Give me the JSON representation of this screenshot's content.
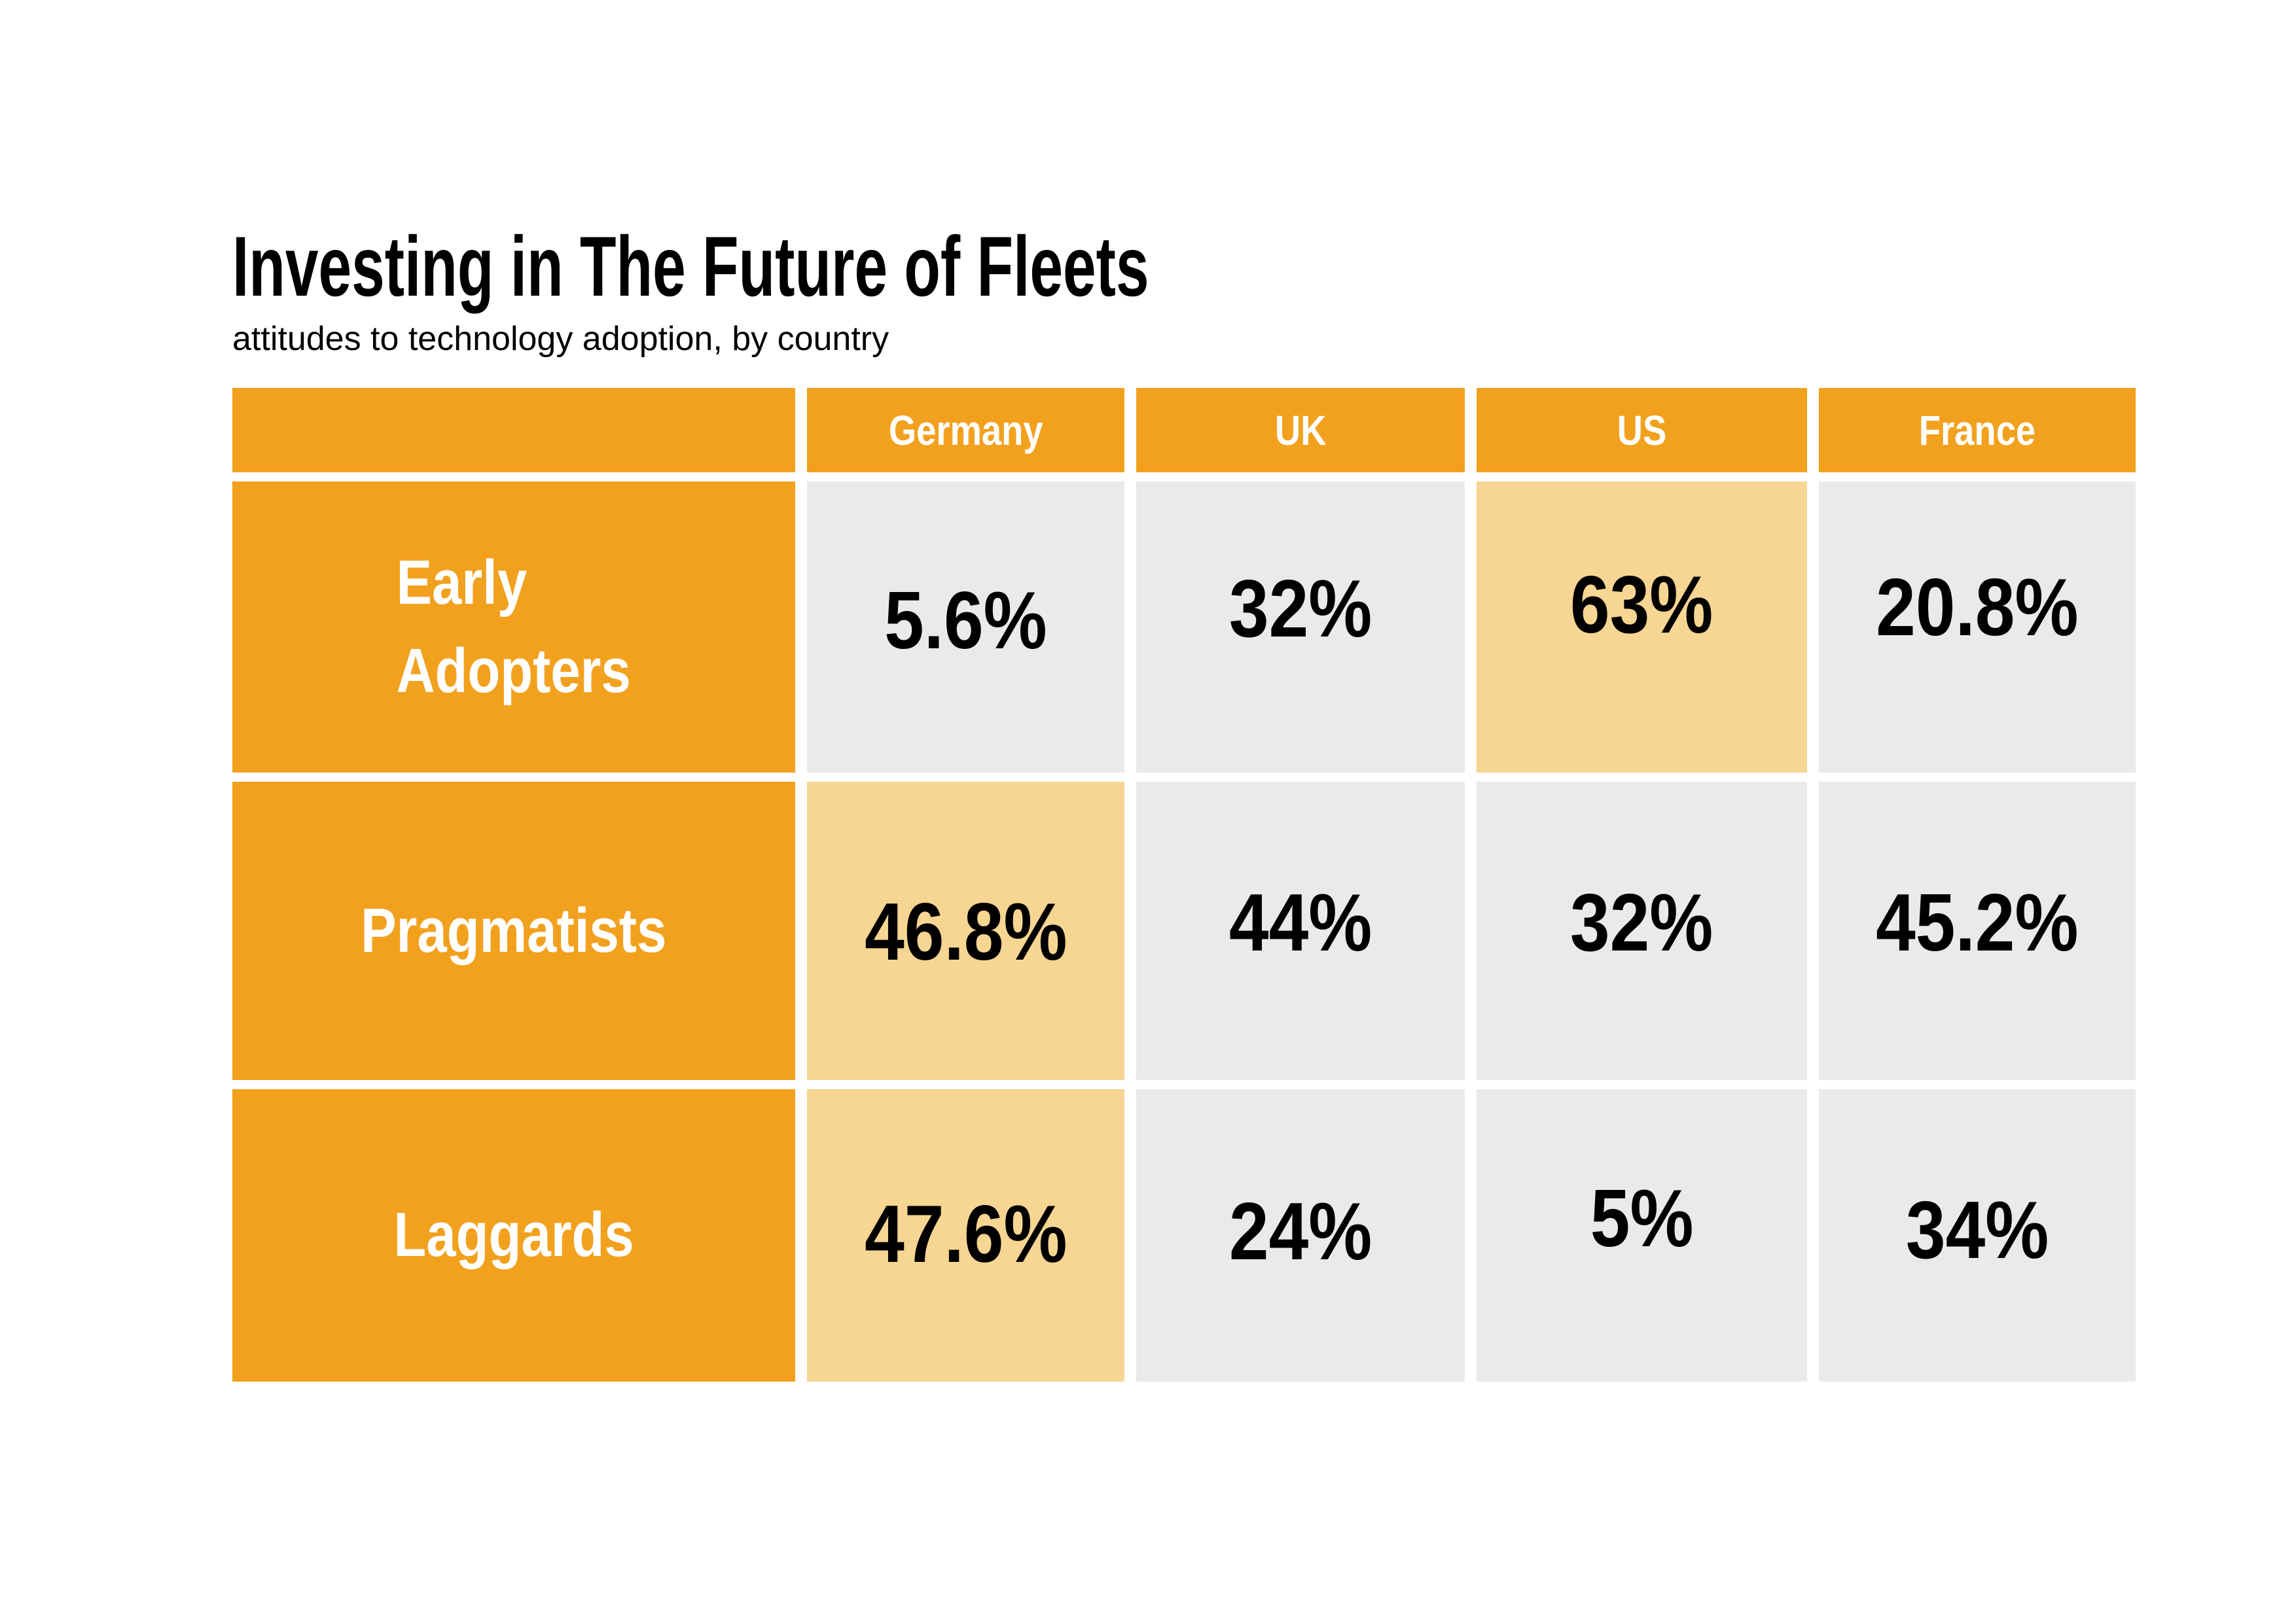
{
  "title": "Investing in The Future of Fleets",
  "subtitle": "attitudes to technology adoption, by country",
  "table": {
    "columns": [
      "Germany",
      "UK",
      "US",
      "France"
    ],
    "rows": [
      {
        "label": "Early\nAdopters",
        "values": [
          "5.6%",
          "32%",
          "63%",
          "20.8%"
        ]
      },
      {
        "label": "Pragmatists",
        "values": [
          "46.8%",
          "44%",
          "32%",
          "45.2%"
        ]
      },
      {
        "label": "Laggards",
        "values": [
          "47.6%",
          "24%",
          "5%",
          "34%"
        ]
      }
    ]
  },
  "colors": {
    "orange": "#F2A11E",
    "highlight": "#F7D592",
    "cell_gray": "#EBEAE8",
    "title_text": "#000000",
    "cell_text": "#000000",
    "header_text": "#FFFFFF"
  },
  "chart_data": {
    "type": "table",
    "title": "Investing in The Future of Fleets",
    "subtitle": "attitudes to technology adoption, by country",
    "categories": [
      "Germany",
      "UK",
      "US",
      "France"
    ],
    "series": [
      {
        "name": "Early Adopters",
        "values": [
          5.6,
          32,
          63,
          20.8
        ]
      },
      {
        "name": "Pragmatists",
        "values": [
          46.8,
          44,
          32,
          45.2
        ]
      },
      {
        "name": "Laggards",
        "values": [
          47.6,
          24,
          5,
          34
        ]
      }
    ],
    "unit": "%",
    "highlighted_cells": [
      {
        "row": "Early Adopters",
        "column": "US",
        "value": 63
      },
      {
        "row": "Pragmatists",
        "column": "Germany",
        "value": 46.8
      },
      {
        "row": "Laggards",
        "column": "Germany",
        "value": 47.6
      }
    ],
    "legend_position": "none",
    "grid": false
  }
}
